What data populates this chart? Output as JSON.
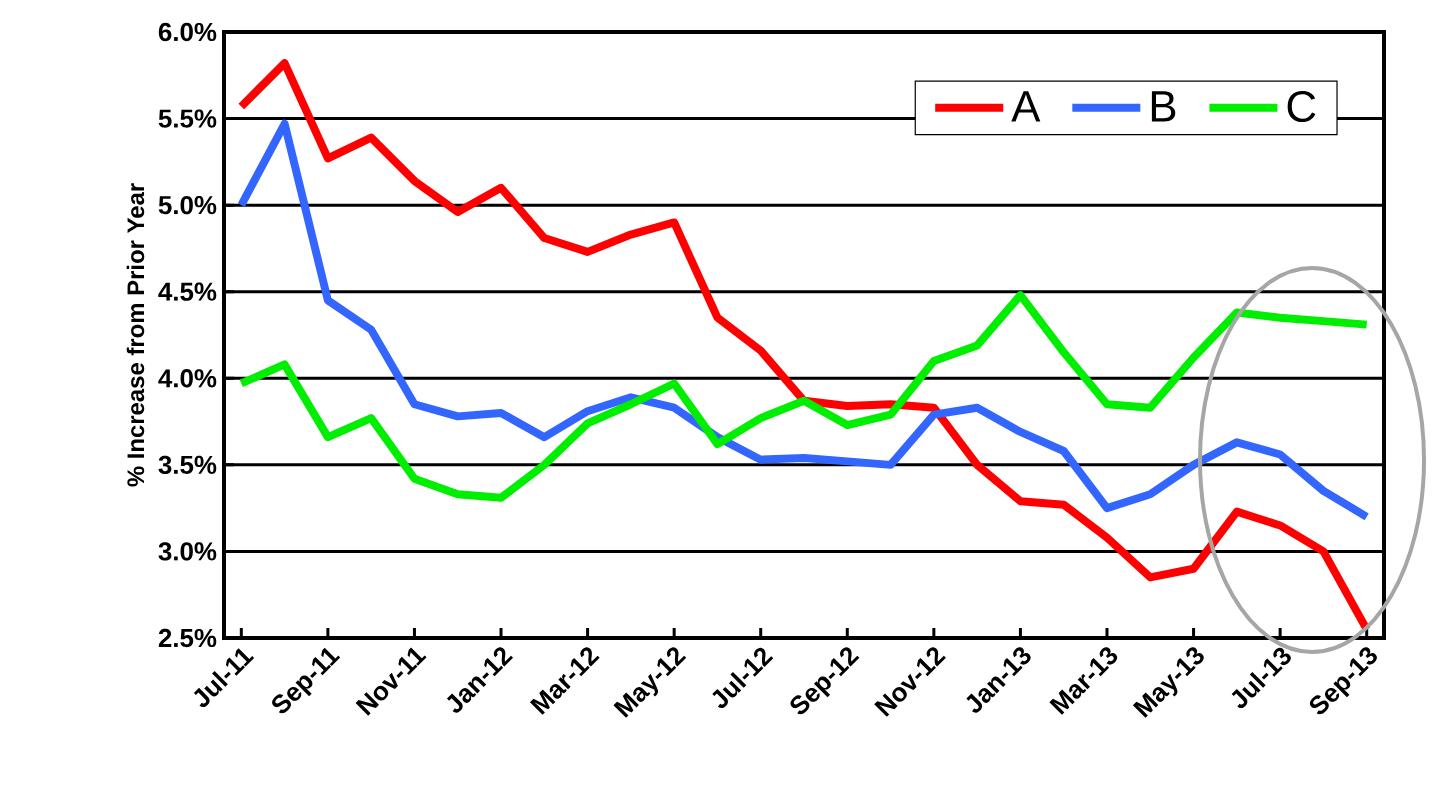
{
  "chart_data": {
    "type": "line",
    "ylabel": "% Increase from Prior Year",
    "categories": [
      "Jul-11",
      null,
      "Sep-11",
      null,
      "Nov-11",
      null,
      "Jan-12",
      null,
      "Mar-12",
      null,
      "May-12",
      null,
      "Jul-12",
      null,
      "Sep-12",
      null,
      "Nov-12",
      null,
      "Jan-13",
      null,
      "Mar-13",
      null,
      "May-13",
      null,
      "Jul-13",
      null,
      "Sep-13"
    ],
    "series": [
      {
        "name": "A",
        "color": "#ff0000",
        "values": [
          5.57,
          5.82,
          5.27,
          5.39,
          5.14,
          4.96,
          5.1,
          4.81,
          4.73,
          4.83,
          4.9,
          4.35,
          4.16,
          3.87,
          3.84,
          3.85,
          3.83,
          3.5,
          3.29,
          3.27,
          3.08,
          2.85,
          2.9,
          3.23,
          3.15,
          3.0,
          2.55
        ]
      },
      {
        "name": "B",
        "color": "#3366ff",
        "values": [
          5.0,
          5.47,
          4.45,
          4.28,
          3.85,
          3.78,
          3.8,
          3.66,
          3.81,
          3.89,
          3.83,
          3.66,
          3.53,
          3.54,
          3.52,
          3.5,
          3.79,
          3.83,
          3.69,
          3.58,
          3.25,
          3.33,
          3.5,
          3.63,
          3.56,
          3.35,
          3.2
        ]
      },
      {
        "name": "C",
        "color": "#00ee00",
        "values": [
          3.97,
          4.08,
          3.66,
          3.77,
          3.42,
          3.33,
          3.31,
          3.5,
          3.74,
          3.85,
          3.97,
          3.62,
          3.77,
          3.87,
          3.73,
          3.79,
          4.1,
          4.19,
          4.48,
          4.15,
          3.85,
          3.83,
          4.12,
          4.38,
          4.35,
          4.33,
          4.31
        ]
      }
    ],
    "ylim": [
      2.5,
      6.0
    ],
    "yticks": [
      {
        "value": 2.5,
        "label": "2.5%"
      },
      {
        "value": 3.0,
        "label": "3.0%"
      },
      {
        "value": 3.5,
        "label": "3.5%"
      },
      {
        "value": 4.0,
        "label": "4.0%"
      },
      {
        "value": 4.5,
        "label": "4.5%"
      },
      {
        "value": 5.0,
        "label": "5.0%"
      },
      {
        "value": 5.5,
        "label": "5.5%"
      },
      {
        "value": 6.0,
        "label": "6.0%"
      }
    ],
    "grid": "y",
    "legend": "top right",
    "marker": "none",
    "line_style": "solid"
  }
}
